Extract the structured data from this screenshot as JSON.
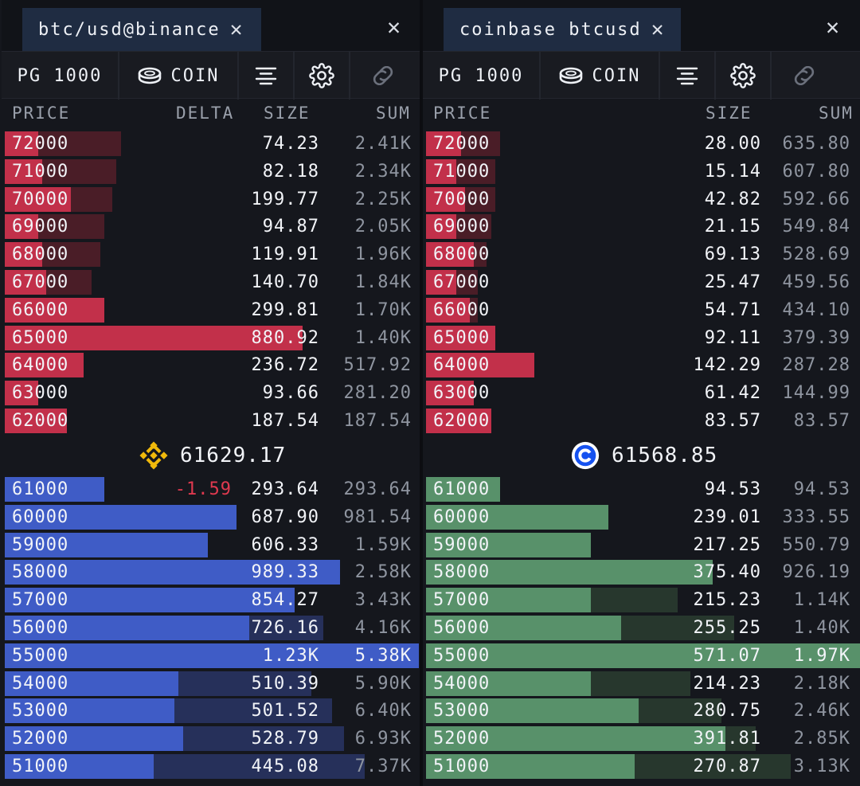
{
  "panels": [
    {
      "tab_title": "btc/usd@binance",
      "toolbar": {
        "pg": "PG 1000",
        "coin": "COIN"
      },
      "headers": {
        "price": "PRICE",
        "delta": "DELTA",
        "size": "SIZE",
        "sum": "SUM"
      },
      "mid_price": "61629.17",
      "exchange_icon": "binance-icon",
      "asks": [
        {
          "price": "72000",
          "size": "74.23",
          "sum": "2.41K",
          "fill": 0.08,
          "bg": 0.28
        },
        {
          "price": "71000",
          "size": "82.18",
          "sum": "2.34K",
          "fill": 0.09,
          "bg": 0.27
        },
        {
          "price": "70000",
          "size": "199.77",
          "sum": "2.25K",
          "fill": 0.16,
          "bg": 0.26
        },
        {
          "price": "69000",
          "size": "94.87",
          "sum": "2.05K",
          "fill": 0.08,
          "bg": 0.24
        },
        {
          "price": "68000",
          "size": "119.91",
          "sum": "1.96K",
          "fill": 0.09,
          "bg": 0.23
        },
        {
          "price": "67000",
          "size": "140.70",
          "sum": "1.84K",
          "fill": 0.1,
          "bg": 0.21
        },
        {
          "price": "66000",
          "size": "299.81",
          "sum": "1.70K",
          "fill": 0.24,
          "bg": 0.2
        },
        {
          "price": "65000",
          "size": "880.92",
          "sum": "1.40K",
          "fill": 0.72,
          "bg": 0.16
        },
        {
          "price": "64000",
          "size": "236.72",
          "sum": "517.92",
          "fill": 0.19,
          "bg": 0.06
        },
        {
          "price": "63000",
          "size": "93.66",
          "sum": "281.20",
          "fill": 0.08,
          "bg": 0.03
        },
        {
          "price": "62000",
          "size": "187.54",
          "sum": "187.54",
          "fill": 0.15,
          "bg": 0.02
        }
      ],
      "bids": [
        {
          "price": "61000",
          "delta": "-1.59",
          "size": "293.64",
          "sum": "293.64",
          "fill": 0.24,
          "bg": 0.05
        },
        {
          "price": "60000",
          "delta": "",
          "size": "687.90",
          "sum": "981.54",
          "fill": 0.56,
          "bg": 0.18
        },
        {
          "price": "59000",
          "delta": "",
          "size": "606.33",
          "sum": "1.59K",
          "fill": 0.49,
          "bg": 0.3
        },
        {
          "price": "58000",
          "delta": "",
          "size": "989.33",
          "sum": "2.58K",
          "fill": 0.81,
          "bg": 0.48
        },
        {
          "price": "57000",
          "delta": "",
          "size": "854.27",
          "sum": "3.43K",
          "fill": 0.7,
          "bg": 0.64
        },
        {
          "price": "56000",
          "delta": "",
          "size": "726.16",
          "sum": "4.16K",
          "fill": 0.59,
          "bg": 0.77
        },
        {
          "price": "55000",
          "delta": "",
          "size": "1.23K",
          "sum": "5.38K",
          "fill": 1.0,
          "bg": 1.0,
          "highlight": true
        },
        {
          "price": "54000",
          "delta": "",
          "size": "510.39",
          "sum": "5.90K",
          "fill": 0.42,
          "bg": 0.74
        },
        {
          "price": "53000",
          "delta": "",
          "size": "501.52",
          "sum": "6.40K",
          "fill": 0.41,
          "bg": 0.79
        },
        {
          "price": "52000",
          "delta": "",
          "size": "528.79",
          "sum": "6.93K",
          "fill": 0.43,
          "bg": 0.82
        },
        {
          "price": "51000",
          "delta": "",
          "size": "445.08",
          "sum": "7.37K",
          "fill": 0.36,
          "bg": 0.87
        }
      ]
    },
    {
      "tab_title": "coinbase btcusd",
      "toolbar": {
        "pg": "PG 1000",
        "coin": "COIN"
      },
      "headers": {
        "price": "PRICE",
        "delta": "",
        "size": "SIZE",
        "sum": "SUM"
      },
      "mid_price": "61568.85",
      "exchange_icon": "coinbase-icon",
      "asks": [
        {
          "price": "72000",
          "size": "28.00",
          "sum": "635.80",
          "fill": 0.08,
          "bg": 0.17
        },
        {
          "price": "71000",
          "size": "15.14",
          "sum": "607.80",
          "fill": 0.07,
          "bg": 0.16
        },
        {
          "price": "70000",
          "size": "42.82",
          "sum": "592.66",
          "fill": 0.09,
          "bg": 0.16
        },
        {
          "price": "69000",
          "size": "21.15",
          "sum": "549.84",
          "fill": 0.07,
          "bg": 0.15
        },
        {
          "price": "68000",
          "size": "69.13",
          "sum": "528.69",
          "fill": 0.11,
          "bg": 0.14
        },
        {
          "price": "67000",
          "size": "25.47",
          "sum": "459.56",
          "fill": 0.07,
          "bg": 0.12
        },
        {
          "price": "66000",
          "size": "54.71",
          "sum": "434.10",
          "fill": 0.1,
          "bg": 0.12
        },
        {
          "price": "65000",
          "size": "92.11",
          "sum": "379.39",
          "fill": 0.16,
          "bg": 0.1
        },
        {
          "price": "64000",
          "size": "142.29",
          "sum": "287.28",
          "fill": 0.25,
          "bg": 0.08
        },
        {
          "price": "63000",
          "size": "61.42",
          "sum": "144.99",
          "fill": 0.11,
          "bg": 0.04
        },
        {
          "price": "62000",
          "size": "83.57",
          "sum": "83.57",
          "fill": 0.15,
          "bg": 0.02
        }
      ],
      "bids": [
        {
          "price": "61000",
          "delta": "",
          "size": "94.53",
          "sum": "94.53",
          "fill": 0.17,
          "bg": 0.05
        },
        {
          "price": "60000",
          "delta": "",
          "size": "239.01",
          "sum": "333.55",
          "fill": 0.42,
          "bg": 0.17
        },
        {
          "price": "59000",
          "delta": "",
          "size": "217.25",
          "sum": "550.79",
          "fill": 0.38,
          "bg": 0.28
        },
        {
          "price": "58000",
          "delta": "",
          "size": "375.40",
          "sum": "926.19",
          "fill": 0.66,
          "bg": 0.47
        },
        {
          "price": "57000",
          "delta": "",
          "size": "215.23",
          "sum": "1.14K",
          "fill": 0.38,
          "bg": 0.58
        },
        {
          "price": "56000",
          "delta": "",
          "size": "255.25",
          "sum": "1.40K",
          "fill": 0.45,
          "bg": 0.71
        },
        {
          "price": "55000",
          "delta": "",
          "size": "571.07",
          "sum": "1.97K",
          "fill": 1.0,
          "bg": 1.0,
          "highlight": true
        },
        {
          "price": "54000",
          "delta": "",
          "size": "214.23",
          "sum": "2.18K",
          "fill": 0.38,
          "bg": 0.61
        },
        {
          "price": "53000",
          "delta": "",
          "size": "280.75",
          "sum": "2.46K",
          "fill": 0.49,
          "bg": 0.68
        },
        {
          "price": "52000",
          "delta": "",
          "size": "391.81",
          "sum": "2.85K",
          "fill": 0.69,
          "bg": 0.76
        },
        {
          "price": "51000",
          "delta": "",
          "size": "270.87",
          "sum": "3.13K",
          "fill": 0.48,
          "bg": 0.84
        }
      ]
    }
  ]
}
